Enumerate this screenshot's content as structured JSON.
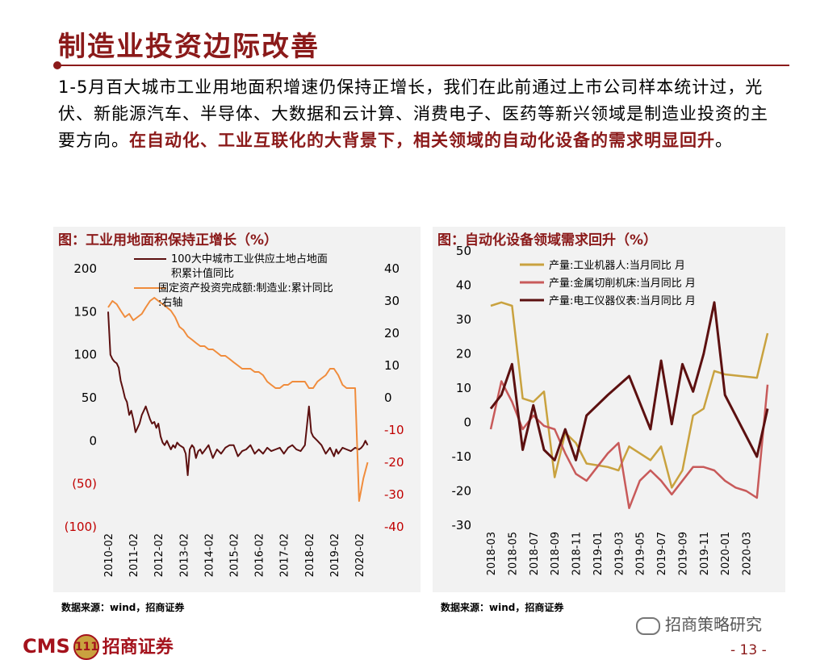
{
  "slide": {
    "title": "制造业投资边际改善",
    "body_normal": "1-5月百大城市工业用地面积增速仍保持正增长，我们在此前通过上市公司样本统计过，光伏、新能源汽车、半导体、大数据和云计算、消费电子、医药等新兴领域是制造业投资的主要方向。",
    "body_highlight": "在自动化、工业互联化的大背景下，相关领域的自动化设备的需求明显回升",
    "body_tail": "。",
    "footer_logo_text": "CMS",
    "footer_logo_mark": "111",
    "footer_logo_cn": "招商证券",
    "wechat_label": "招商策略研究",
    "page_number": "- 13 -",
    "colors": {
      "accent": "#8b1a1a",
      "panel_bg": "#f2f2f2"
    }
  },
  "chart_data": [
    {
      "type": "line",
      "title": "图：工业用地面积保持正增长（%）",
      "source": "数据来源：wind，招商证券",
      "x_labels": [
        "2010-02",
        "2011-02",
        "2012-02",
        "2013-02",
        "2014-02",
        "2015-02",
        "2016-02",
        "2017-02",
        "2018-02",
        "2019-02",
        "2020-02"
      ],
      "x_range": [
        2010.08,
        2020.5
      ],
      "y_left": {
        "ticks": [
          200,
          150,
          100,
          50,
          0,
          -50,
          -100
        ],
        "tick_labels": [
          "200",
          "150",
          "100",
          "50",
          "0",
          "(50)",
          "(100)"
        ],
        "range": [
          -100,
          200
        ]
      },
      "y_right": {
        "ticks": [
          40,
          30,
          20,
          10,
          0,
          -10,
          -20,
          -30,
          -40
        ],
        "tick_labels": [
          "40",
          "30",
          "20",
          "10",
          "0",
          "-10",
          "-20",
          "-30",
          "-40"
        ],
        "range": [
          -40,
          40
        ]
      },
      "series": [
        {
          "name": "100大中城市工业供应土地占地面积累计值同比",
          "legend_text": "100大中城市工业供应土地占地面积累计值同比",
          "axis": "left",
          "color": "#5c1010",
          "x": [
            2010.08,
            2010.17,
            2010.25,
            2010.33,
            2010.42,
            2010.5,
            2010.58,
            2010.67,
            2010.75,
            2010.83,
            2010.92,
            2011.0,
            2011.08,
            2011.17,
            2011.25,
            2011.33,
            2011.42,
            2011.5,
            2011.58,
            2011.67,
            2011.75,
            2011.83,
            2011.92,
            2012.0,
            2012.08,
            2012.17,
            2012.25,
            2012.33,
            2012.42,
            2012.5,
            2012.58,
            2012.67,
            2012.75,
            2012.83,
            2012.92,
            2013.08,
            2013.17,
            2013.25,
            2013.33,
            2013.42,
            2013.5,
            2013.58,
            2013.67,
            2013.75,
            2013.83,
            2014.08,
            2014.25,
            2014.42,
            2014.58,
            2014.75,
            2014.92,
            2015.08,
            2015.25,
            2015.42,
            2015.58,
            2015.75,
            2015.92,
            2016.08,
            2016.25,
            2016.42,
            2016.58,
            2016.75,
            2016.92,
            2017.08,
            2017.25,
            2017.42,
            2017.58,
            2017.75,
            2017.92,
            2018.08,
            2018.17,
            2018.25,
            2018.42,
            2018.58,
            2018.75,
            2018.92,
            2019.08,
            2019.17,
            2019.25,
            2019.42,
            2019.58,
            2019.75,
            2019.92,
            2020.08,
            2020.17,
            2020.25,
            2020.33,
            2020.42
          ],
          "values": [
            150,
            100,
            95,
            92,
            90,
            85,
            70,
            60,
            50,
            45,
            30,
            35,
            25,
            10,
            15,
            20,
            30,
            35,
            40,
            32,
            25,
            20,
            22,
            15,
            20,
            5,
            -2,
            -5,
            0,
            -5,
            -10,
            -5,
            -8,
            -2,
            -5,
            -8,
            -15,
            -40,
            -10,
            -5,
            -8,
            -20,
            -12,
            -10,
            -15,
            -5,
            -20,
            -10,
            -15,
            -8,
            -5,
            -5,
            -18,
            -12,
            -10,
            -5,
            -15,
            -10,
            -15,
            -8,
            -12,
            -10,
            -8,
            -15,
            -8,
            -5,
            -10,
            -12,
            -5,
            40,
            10,
            5,
            0,
            -5,
            -15,
            -8,
            -18,
            -10,
            -15,
            -8,
            -10,
            -12,
            -8,
            -10,
            -8,
            -5,
            0,
            -5
          ]
        },
        {
          "name": "固定资产投资完成额:制造业:累计同比:右轴",
          "legend_text": "固定资产投资完成额:制造业:累计同比:右轴",
          "axis": "right",
          "color": "#f08c3c",
          "x": [
            2010.08,
            2010.25,
            2010.42,
            2010.58,
            2010.75,
            2010.92,
            2011.08,
            2011.25,
            2011.42,
            2011.58,
            2011.75,
            2011.92,
            2012.08,
            2012.25,
            2012.42,
            2012.58,
            2012.75,
            2012.92,
            2013.08,
            2013.25,
            2013.42,
            2013.58,
            2013.75,
            2013.92,
            2014.08,
            2014.25,
            2014.42,
            2014.58,
            2014.75,
            2014.92,
            2015.08,
            2015.25,
            2015.42,
            2015.58,
            2015.75,
            2015.92,
            2016.08,
            2016.25,
            2016.42,
            2016.58,
            2016.75,
            2016.92,
            2017.08,
            2017.25,
            2017.42,
            2017.58,
            2017.75,
            2017.92,
            2018.08,
            2018.25,
            2018.42,
            2018.58,
            2018.75,
            2018.92,
            2019.08,
            2019.25,
            2019.42,
            2019.58,
            2019.75,
            2019.92,
            2020.08,
            2020.25,
            2020.42
          ],
          "values": [
            28,
            30,
            29,
            27,
            25,
            26,
            24,
            25,
            26,
            28,
            30,
            31,
            30,
            29,
            28,
            27,
            25,
            22,
            21,
            19,
            18,
            17,
            16,
            16,
            15,
            15,
            14,
            13,
            13,
            12,
            11,
            10,
            9,
            9,
            9,
            8,
            8,
            7,
            5,
            4,
            3,
            3,
            4,
            4,
            5,
            5,
            5,
            5,
            3,
            3,
            5,
            6,
            7,
            9,
            9,
            7,
            4,
            3,
            3,
            3,
            -32,
            -25,
            -20
          ]
        }
      ]
    },
    {
      "type": "line",
      "title": "图：自动化设备领域需求回升（%）",
      "source": "数据来源：wind，招商证券",
      "x_labels": [
        "2018-03",
        "2018-05",
        "2018-07",
        "2018-09",
        "2018-11",
        "2019-01",
        "2019-03",
        "2019-05",
        "2019-07",
        "2019-09",
        "2019-11",
        "2020-01",
        "2020-03"
      ],
      "x_range": [
        0,
        26
      ],
      "y_left": {
        "ticks": [
          50,
          40,
          30,
          20,
          10,
          0,
          -10,
          -20,
          -30
        ],
        "tick_labels": [
          "50",
          "40",
          "30",
          "20",
          "10",
          "0",
          "-10",
          "-20",
          "-30"
        ],
        "range": [
          -30,
          50
        ]
      },
      "series": [
        {
          "name": "产量:工业机器人:当月同比 月",
          "legend_text": "产量:工业机器人:当月同比 月",
          "axis": "left",
          "color": "#c9a23f",
          "x": [
            0,
            1,
            2,
            3,
            4,
            5,
            6,
            7,
            8,
            9,
            10,
            11,
            12,
            13,
            14,
            15,
            16,
            17,
            18,
            19,
            20,
            21,
            22,
            25,
            26
          ],
          "values": [
            34,
            35,
            34,
            7,
            6,
            9,
            -16,
            -3,
            -6,
            -12,
            -12.5,
            -13,
            -14,
            -7,
            -9,
            -11,
            -7,
            -19,
            -14,
            2,
            4,
            15,
            14,
            13,
            26
          ]
        },
        {
          "name": "产量:金属切削机床:当月同比 月",
          "legend_text": "产量:金属切削机床:当月同比 月",
          "axis": "left",
          "color": "#c85a5a",
          "x": [
            0,
            1,
            2,
            3,
            4,
            5,
            6,
            7,
            8,
            9,
            10,
            11,
            12,
            13,
            14,
            15,
            16,
            17,
            18,
            19,
            20,
            21,
            22,
            23,
            24,
            25,
            26
          ],
          "values": [
            -2,
            12,
            6,
            -2,
            2,
            -1,
            -2,
            -9,
            -15,
            -17,
            -13,
            -9,
            -6,
            -25,
            -17,
            -14,
            -17,
            -21,
            -17,
            -13,
            -13,
            -14,
            -17,
            -19,
            -20,
            -22,
            11
          ]
        },
        {
          "name": "产量:电工仪器仪表:当月同比 月",
          "legend_text": "产量:电工仪器仪表:当月同比 月",
          "axis": "left",
          "color": "#5c1010",
          "x": [
            0,
            1,
            2,
            3,
            4,
            5,
            6,
            7,
            8,
            9,
            11,
            13,
            15,
            16,
            17,
            18,
            19,
            20,
            21,
            22,
            25,
            26
          ],
          "values": [
            4,
            8,
            17,
            -8,
            5,
            -8,
            -11,
            -2,
            -11,
            2,
            8,
            13.5,
            -2,
            18,
            -0.5,
            17,
            9,
            20,
            35,
            8,
            -10,
            4
          ]
        }
      ]
    }
  ]
}
